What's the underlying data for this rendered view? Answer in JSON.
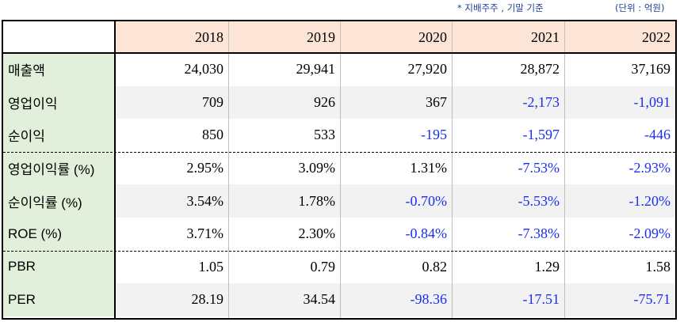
{
  "notes": {
    "left": "* 지배주주 , 기말 기준",
    "right": "(단위 : 억원)"
  },
  "years": [
    "2018",
    "2019",
    "2020",
    "2021",
    "2022"
  ],
  "rows": [
    {
      "label": "매출액",
      "values": [
        "24,030",
        "29,941",
        "27,920",
        "28,872",
        "37,169"
      ]
    },
    {
      "label": "영업이익",
      "values": [
        "709",
        "926",
        "367",
        "-2,173",
        "-1,091"
      ]
    },
    {
      "label": "순이익",
      "values": [
        "850",
        "533",
        "-195",
        "-1,597",
        "-446"
      ]
    },
    {
      "label": "영업이익률 (%)",
      "values": [
        "2.95%",
        "3.09%",
        "1.31%",
        "-7.53%",
        "-2.93%"
      ]
    },
    {
      "label": "순이익률 (%)",
      "values": [
        "3.54%",
        "1.78%",
        "-0.70%",
        "-5.53%",
        "-1.20%"
      ]
    },
    {
      "label": "ROE (%)",
      "values": [
        "3.71%",
        "2.30%",
        "-0.84%",
        "-7.38%",
        "-2.09%"
      ]
    },
    {
      "label": "PBR",
      "values": [
        "1.05",
        "0.79",
        "0.82",
        "1.29",
        "1.58"
      ]
    },
    {
      "label": "PER",
      "values": [
        "28.19",
        "34.54",
        "-98.36",
        "-17.51",
        "-75.71"
      ]
    }
  ],
  "colors": {
    "header_bg": "#fce4d6",
    "label_bg": "#e2efda",
    "shade_bg": "#f2f2f2",
    "negative_text": "#1a2ff0",
    "note_text": "#1f3f99"
  }
}
